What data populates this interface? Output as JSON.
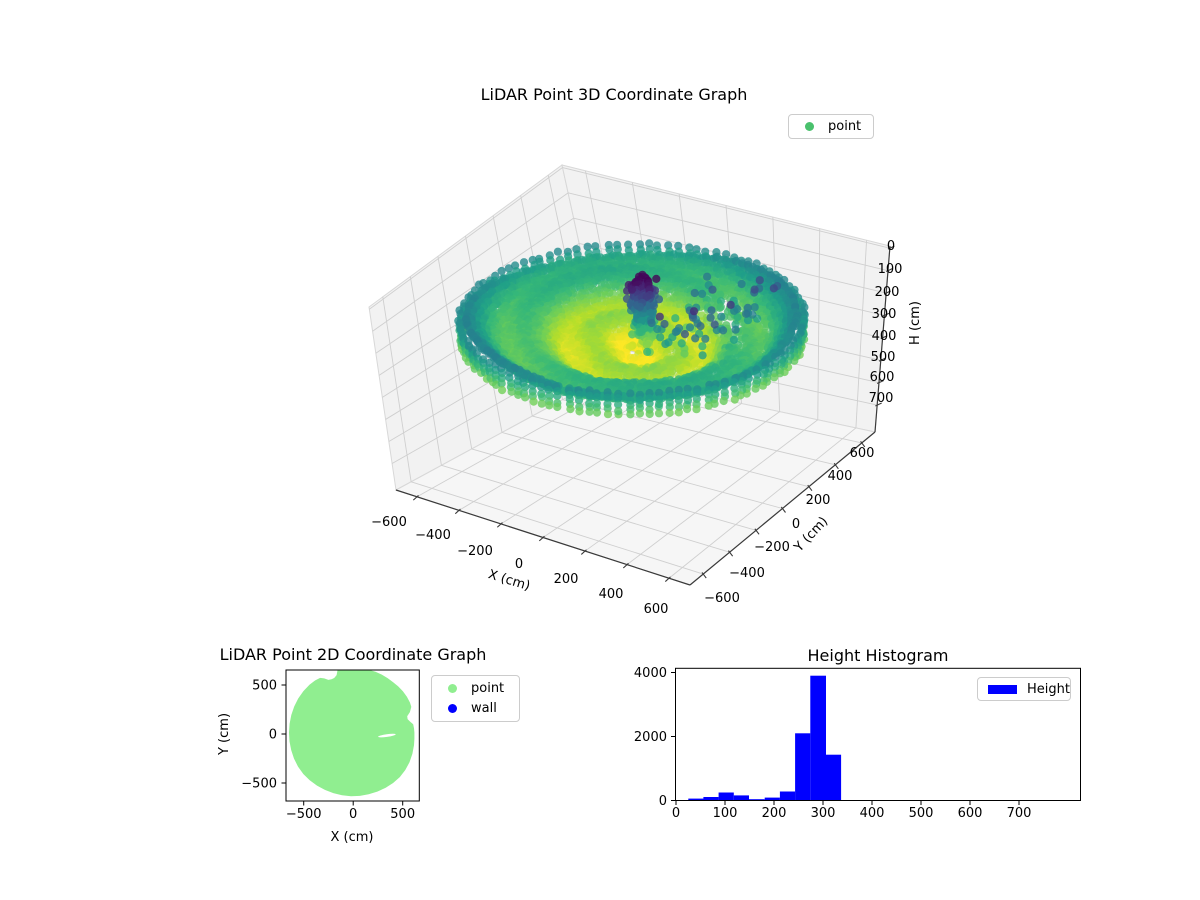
{
  "plot3d": {
    "title": "LiDAR Point 3D Coordinate Graph",
    "xlabel": "X (cm)",
    "ylabel": "Y (cm)",
    "zlabel": "H (cm)",
    "xtick_labels": [
      "−600",
      "−400",
      "−200",
      "0",
      "200",
      "400",
      "600"
    ],
    "ytick_labels": [
      "−600",
      "−400",
      "−200",
      "0",
      "200",
      "400",
      "600"
    ],
    "ztick_labels": [
      "0",
      "100",
      "200",
      "300",
      "400",
      "500",
      "600",
      "700"
    ],
    "legend": [
      {
        "label": "point",
        "color": "#4ac16d"
      }
    ]
  },
  "plot2d": {
    "title": "LiDAR Point 2D Coordinate Graph",
    "xlabel": "X (cm)",
    "ylabel": "Y (cm)",
    "xtick_labels": [
      "−500",
      "0",
      "500"
    ],
    "ytick_labels": [
      "500",
      "0",
      "−500"
    ],
    "legend": [
      {
        "label": "point",
        "color": "#90ee90"
      },
      {
        "label": "wall",
        "color": "#0000ff"
      }
    ]
  },
  "histogram": {
    "title": "Height Histogram",
    "xtick_labels": [
      "0",
      "100",
      "200",
      "300",
      "400",
      "500",
      "600",
      "700"
    ],
    "ytick_labels": [
      "0",
      "2000",
      "4000"
    ],
    "legend": [
      {
        "label": "Height",
        "color": "#0000ff"
      }
    ]
  },
  "chart_data": [
    {
      "type": "scatter",
      "subtype": "3d-point-cloud",
      "title": "LiDAR Point 3D Coordinate Graph",
      "xlabel": "X (cm)",
      "ylabel": "Y (cm)",
      "zlabel": "H (cm)",
      "xlim": [
        -700,
        700
      ],
      "ylim": [
        -700,
        700
      ],
      "zlim": [
        -10,
        820
      ],
      "z_inverted": true,
      "xticks": [
        -600,
        -400,
        -200,
        0,
        200,
        400,
        600
      ],
      "yticks": [
        -600,
        -400,
        -200,
        0,
        200,
        400,
        600
      ],
      "zticks": [
        0,
        100,
        200,
        300,
        400,
        500,
        600,
        700
      ],
      "legend_position": "upper right",
      "colormap": "viridis",
      "color_by": "H",
      "color_range_cm": [
        20,
        330
      ],
      "point_cloud": {
        "disc": {
          "center_xy": [
            0,
            0
          ],
          "radius_cm": 650,
          "ring_step_cm": 17,
          "h_center_cm": 316,
          "h_edge_drop_cm": 152,
          "h_swirl_amp_cm": 22
        },
        "rim": {
          "radius_cm": 650,
          "h_range_cm": [
            170,
            260
          ],
          "angle_step_deg": 3.4,
          "h_step_cm": 22
        },
        "wall_cluster": {
          "center_xy": [
            20,
            60
          ],
          "spread_xy": [
            55,
            75
          ],
          "h_range_cm": [
            20,
            310
          ],
          "n": 240
        },
        "wall_core": {
          "center_xy": [
            0,
            40
          ],
          "spread_xy": [
            30,
            40
          ],
          "h_range_cm": [
            25,
            135
          ],
          "n": 70
        },
        "sparse_wall_points": {
          "x_range": [
            60,
            430
          ],
          "y_range": [
            -140,
            420
          ],
          "h_range_cm": [
            60,
            280
          ],
          "n": 95
        },
        "shadow_sectors": [
          {
            "angle_deg": [
              -60,
              40
            ],
            "r_cm": [
              120,
              540
            ],
            "drop": 0.34
          },
          {
            "angle_deg": [
              35,
              78
            ],
            "r_cm": [
              120,
              500
            ],
            "drop": 0.55
          }
        ]
      }
    },
    {
      "type": "scatter",
      "subtype": "2d-footprint",
      "title": "LiDAR Point 2D Coordinate Graph",
      "xlabel": "X (cm)",
      "ylabel": "Y (cm)",
      "xlim": [
        -679,
        668
      ],
      "ylim": [
        -684,
        653
      ],
      "xticks": [
        -500,
        0,
        500
      ],
      "yticks": [
        500,
        0,
        -500
      ],
      "series": [
        {
          "name": "point",
          "color": "#90ee90",
          "shape": "filled-disc",
          "center": [
            0,
            15
          ],
          "radius_cm": 650
        },
        {
          "name": "wall",
          "color": "#0000ff",
          "note": "hidden beneath point layer"
        }
      ],
      "blob_polygon_deg_r": [
        [
          0,
          618
        ],
        [
          4,
          616
        ],
        [
          8,
          612
        ],
        [
          11,
          585
        ],
        [
          14,
          566
        ],
        [
          17,
          570
        ],
        [
          20,
          610
        ],
        [
          24,
          642
        ],
        [
          28,
          650
        ],
        [
          34,
          654
        ],
        [
          40,
          656
        ],
        [
          46,
          655
        ],
        [
          52,
          653
        ],
        [
          58,
          655
        ],
        [
          64,
          658
        ],
        [
          70,
          660
        ],
        [
          78,
          661
        ],
        [
          86,
          662
        ],
        [
          94,
          661
        ],
        [
          100,
          659
        ],
        [
          104,
          656
        ],
        [
          106,
          610
        ],
        [
          109,
          588
        ],
        [
          112,
          586
        ],
        [
          115,
          592
        ],
        [
          118,
          625
        ],
        [
          121,
          650
        ],
        [
          126,
          656
        ],
        [
          132,
          658
        ],
        [
          140,
          657
        ],
        [
          148,
          655
        ],
        [
          156,
          652
        ],
        [
          164,
          650
        ],
        [
          172,
          649
        ],
        [
          180,
          648
        ],
        [
          188,
          650
        ],
        [
          196,
          652
        ],
        [
          204,
          655
        ],
        [
          212,
          657
        ],
        [
          220,
          658
        ],
        [
          228,
          656
        ],
        [
          236,
          653
        ],
        [
          244,
          651
        ],
        [
          252,
          650
        ],
        [
          260,
          649
        ],
        [
          268,
          650
        ],
        [
          276,
          650
        ],
        [
          284,
          649
        ],
        [
          292,
          650
        ],
        [
          300,
          652
        ],
        [
          308,
          654
        ],
        [
          316,
          654
        ],
        [
          324,
          650
        ],
        [
          332,
          644
        ],
        [
          340,
          636
        ],
        [
          348,
          628
        ],
        [
          354,
          622
        ]
      ],
      "hole_sliver": {
        "center": [
          340,
          -16
        ],
        "rx_cm": 90,
        "ry_cm": 14,
        "rotation_deg": -8
      }
    },
    {
      "type": "histogram",
      "title": "Height Histogram",
      "series_name": "Height",
      "bar_color": "#0000ff",
      "bin_edges": [
        25,
        56,
        87,
        118,
        149,
        181,
        212,
        243,
        274,
        306,
        337
      ],
      "counts": [
        60,
        110,
        250,
        160,
        40,
        90,
        280,
        2100,
        3900,
        1430
      ],
      "xticks": [
        0,
        100,
        200,
        300,
        400,
        500,
        600,
        700
      ],
      "yticks": [
        0,
        2000,
        4000
      ],
      "xlim": [
        -9,
        826
      ],
      "ylim": [
        0,
        4130
      ],
      "legend_position": "upper right"
    }
  ]
}
